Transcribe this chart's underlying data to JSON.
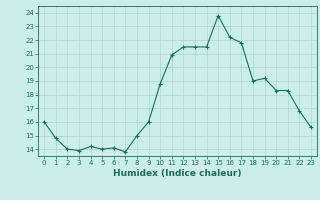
{
  "x": [
    0,
    1,
    2,
    3,
    4,
    5,
    6,
    7,
    8,
    9,
    10,
    11,
    12,
    13,
    14,
    15,
    16,
    17,
    18,
    19,
    20,
    21,
    22,
    23
  ],
  "y": [
    16.0,
    14.8,
    14.0,
    13.9,
    14.2,
    14.0,
    14.1,
    13.8,
    15.0,
    16.0,
    18.8,
    20.9,
    21.5,
    21.5,
    21.5,
    23.8,
    22.2,
    21.8,
    19.0,
    19.2,
    18.3,
    18.3,
    16.8,
    15.6
  ],
  "line_color": "#1a6b5a",
  "marker": "+",
  "marker_size": 3,
  "bg_color": "#cceee8",
  "grid_color": "#aad4cc",
  "xlabel": "Humidex (Indice chaleur)",
  "ylim": [
    13.5,
    24.5
  ],
  "yticks": [
    14,
    15,
    16,
    17,
    18,
    19,
    20,
    21,
    22,
    23,
    24
  ],
  "xticks": [
    0,
    1,
    2,
    3,
    4,
    5,
    6,
    7,
    8,
    9,
    10,
    11,
    12,
    13,
    14,
    15,
    16,
    17,
    18,
    19,
    20,
    21,
    22,
    23
  ],
  "xlim": [
    -0.5,
    23.5
  ],
  "label_color": "#1a6b5a",
  "tick_color": "#1a6b5a",
  "tick_fontsize": 5,
  "xlabel_fontsize": 6.5,
  "linewidth": 0.8,
  "marker_edge_width": 0.8
}
